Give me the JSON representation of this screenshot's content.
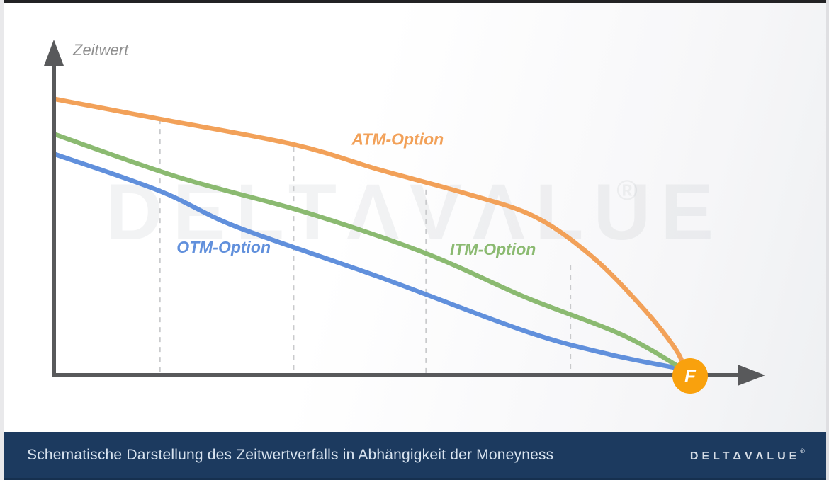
{
  "chart_data": {
    "type": "line",
    "title": "Schematische Darstellung des Zeitwertverfalls in Abhängigkeit der Moneyness",
    "ylabel": "Zeitwert",
    "xlabel": "",
    "x_axis_terminal_label": "F",
    "grid": "vertical-dashed",
    "legend_position": "inline-labels",
    "axes_numeric": false,
    "x_range_normalized": [
      0,
      1
    ],
    "y_range_normalized": [
      0,
      1
    ],
    "series": [
      {
        "name": "ATM-Option",
        "color": "#F2A159",
        "label_pos": {
          "x": 0.543,
          "v": 0.835
        },
        "points": [
          [
            0,
            1.0
          ],
          [
            0.166,
            0.928
          ],
          [
            0.378,
            0.836
          ],
          [
            0.514,
            0.744
          ],
          [
            0.645,
            0.662
          ],
          [
            0.758,
            0.577
          ],
          [
            0.848,
            0.436
          ],
          [
            0.927,
            0.256
          ],
          [
            0.983,
            0.097
          ],
          [
            1.0,
            0.012
          ]
        ]
      },
      {
        "name": "ITM-Option",
        "color": "#8BBA71",
        "label_pos": {
          "x": 0.694,
          "v": 0.436
        },
        "points": [
          [
            0,
            0.872
          ],
          [
            0.194,
            0.718
          ],
          [
            0.397,
            0.59
          ],
          [
            0.588,
            0.441
          ],
          [
            0.746,
            0.282
          ],
          [
            0.9,
            0.145
          ],
          [
            1.0,
            0.015
          ]
        ]
      },
      {
        "name": "OTM-Option",
        "color": "#6190DC",
        "label_pos": {
          "x": 0.267,
          "v": 0.444
        },
        "points": [
          [
            0,
            0.8
          ],
          [
            0.166,
            0.667
          ],
          [
            0.287,
            0.538
          ],
          [
            0.51,
            0.359
          ],
          [
            0.746,
            0.159
          ],
          [
            0.88,
            0.075
          ],
          [
            1.0,
            0.02
          ]
        ]
      }
    ],
    "gridlines": [
      {
        "x": 0.166,
        "top": 0.928
      },
      {
        "x": 0.378,
        "top": 0.828
      },
      {
        "x": 0.588,
        "top": 0.672
      },
      {
        "x": 0.817,
        "top": 0.4
      }
    ],
    "expiry_marker": {
      "label": "F",
      "color": "#F9A10D"
    }
  },
  "watermark": {
    "text": "DELTΛVΛLUE",
    "reg": "®"
  },
  "footer": {
    "caption": "Schematische Darstellung des Zeitwertverfalls in Abhängigkeit der Moneyness",
    "logo_text": "DELTΔVΛLUE",
    "logo_reg": "®",
    "bar_color": "#1c3a5f"
  },
  "colors": {
    "axis": "#58595B",
    "dashed_gridline": "#C9CACC",
    "atm": "#F2A159",
    "itm": "#8BBA71",
    "otm": "#6190DC",
    "expiry_circle": "#F9A10D",
    "footer_bar": "#1C3A5F"
  }
}
